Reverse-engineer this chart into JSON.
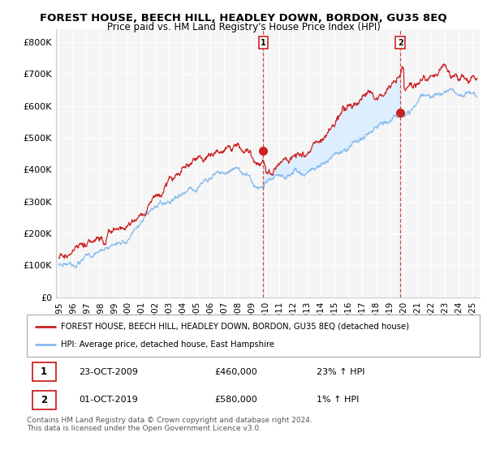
{
  "title": "FOREST HOUSE, BEECH HILL, HEADLEY DOWN, BORDON, GU35 8EQ",
  "subtitle": "Price paid vs. HM Land Registry's House Price Index (HPI)",
  "ylabel_ticks": [
    "£0",
    "£100K",
    "£200K",
    "£300K",
    "£400K",
    "£500K",
    "£600K",
    "£700K",
    "£800K"
  ],
  "ylabel_values": [
    0,
    100000,
    200000,
    300000,
    400000,
    500000,
    600000,
    700000,
    800000
  ],
  "ylim": [
    0,
    840000
  ],
  "xlim_start": 1994.8,
  "xlim_end": 2025.5,
  "line_red_color": "#cc2222",
  "line_blue_color": "#88bbee",
  "shaded_region_color": "#ddeeff",
  "sale1_x": 2009.82,
  "sale1_y": 460000,
  "sale2_x": 2019.75,
  "sale2_y": 580000,
  "legend_line1": "FOREST HOUSE, BEECH HILL, HEADLEY DOWN, BORDON, GU35 8EQ (detached house)",
  "legend_line2": "HPI: Average price, detached house, East Hampshire",
  "table_row1": [
    "1",
    "23-OCT-2009",
    "£460,000",
    "23% ↑ HPI"
  ],
  "table_row2": [
    "2",
    "01-OCT-2019",
    "£580,000",
    "1% ↑ HPI"
  ],
  "footnote": "Contains HM Land Registry data © Crown copyright and database right 2024.\nThis data is licensed under the Open Government Licence v3.0.",
  "bg_color": "#ffffff",
  "plot_bg_color": "#f5f5f5",
  "grid_color": "#ffffff"
}
